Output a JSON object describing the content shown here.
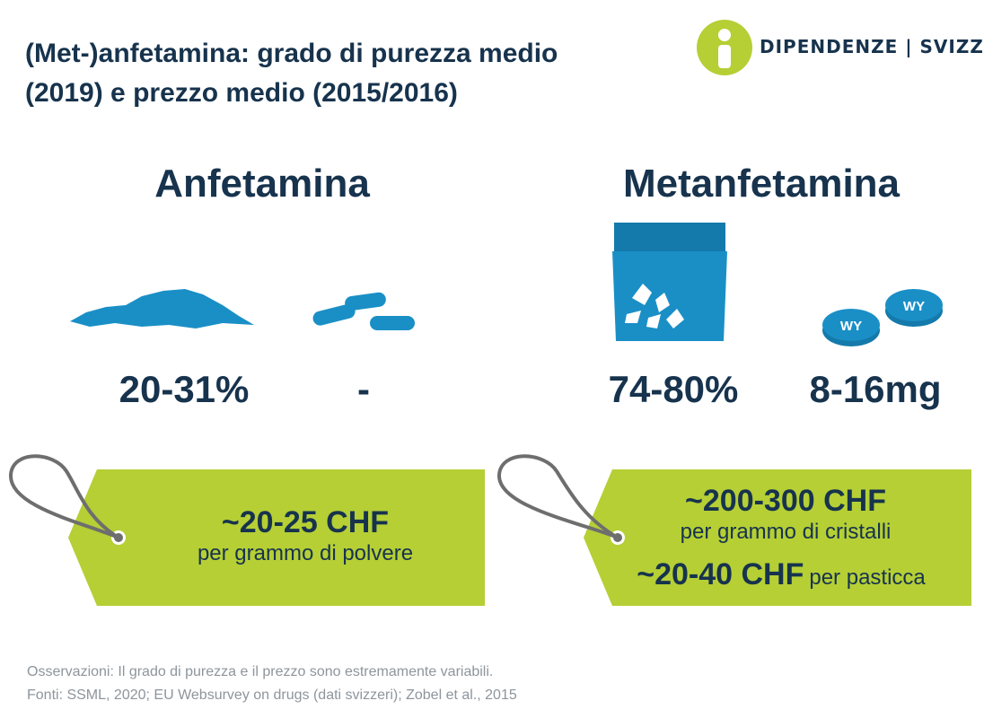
{
  "header": {
    "title_line1": "(Met-)anfetamina: grado di purezza medio",
    "title_line2": "(2019) e prezzo medio (2015/2016)",
    "logo_text": "DIPENDENZE | SVIZZERA"
  },
  "amphetamine": {
    "title": "Anfetamina",
    "purity_powder": "20-31%",
    "pill_content": "-",
    "price": "~20-25 CHF",
    "price_unit": "per grammo di polvere"
  },
  "methamphetamine": {
    "title": "Metanfetamina",
    "purity_crystals": "74-80%",
    "pill_content": "8-16mg",
    "pill_label": "WY",
    "price_crystals": "~200-300 CHF",
    "price_crystals_unit": "per grammo di cristalli",
    "price_pill": "~20-40 CHF",
    "price_pill_unit": "per pasticca"
  },
  "footer": {
    "note": "Osservazioni: Il grado di purezza e il prezzo sono estremamente variabili.",
    "sources": "Fonti: SSML, 2020; EU Websurvey on drugs (dati svizzeri); Zobel et al., 2015"
  },
  "colors": {
    "navy": "#17334d",
    "blue": "#1a8fc6",
    "lime": "#b5cf35",
    "gray_text": "#8d959c",
    "string_gray": "#6e6e6e"
  }
}
